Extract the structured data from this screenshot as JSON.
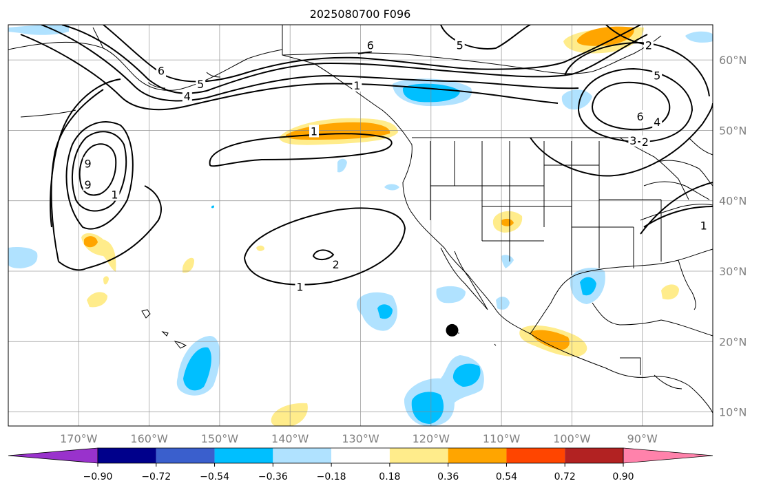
{
  "title": "2025080700 F096",
  "map": {
    "lon_range": [
      -180,
      -80
    ],
    "lat_range": [
      8,
      65
    ],
    "lon_ticks": [
      {
        "lon": -170,
        "label": "170°W"
      },
      {
        "lon": -160,
        "label": "160°W"
      },
      {
        "lon": -150,
        "label": "150°W"
      },
      {
        "lon": -140,
        "label": "140°W"
      },
      {
        "lon": -130,
        "label": "130°W"
      },
      {
        "lon": -120,
        "label": "120°W"
      },
      {
        "lon": -110,
        "label": "110°W"
      },
      {
        "lon": -100,
        "label": "100°W"
      },
      {
        "lon": -90,
        "label": "90°W"
      }
    ],
    "lat_ticks": [
      {
        "lat": 60,
        "label": "60°N"
      },
      {
        "lat": 50,
        "label": "50°N"
      },
      {
        "lat": 40,
        "label": "40°N"
      },
      {
        "lat": 30,
        "label": "30°N"
      },
      {
        "lat": 20,
        "label": "20°N"
      },
      {
        "lat": 10,
        "label": "10°N"
      }
    ],
    "marker": {
      "lon": -117,
      "lat": 21.6
    },
    "contour_labels": [
      {
        "text": "1",
        "lon": -136.6,
        "lat": 49.8
      },
      {
        "text": "1",
        "lon": -138.6,
        "lat": 27.7
      },
      {
        "text": "2",
        "lon": -133.5,
        "lat": 30.9
      },
      {
        "text": "1",
        "lon": -130.5,
        "lat": 56.3
      },
      {
        "text": "6",
        "lon": -128.6,
        "lat": 62.0
      },
      {
        "text": "5",
        "lon": -115.9,
        "lat": 62.0
      },
      {
        "text": "6",
        "lon": -158.3,
        "lat": 58.4
      },
      {
        "text": "5",
        "lon": -152.7,
        "lat": 56.5
      },
      {
        "text": "4",
        "lon": -154.6,
        "lat": 54.8
      },
      {
        "text": "2",
        "lon": -89.1,
        "lat": 62.0
      },
      {
        "text": "5",
        "lon": -87.9,
        "lat": 57.7
      },
      {
        "text": "6",
        "lon": -90.3,
        "lat": 51.9
      },
      {
        "text": "4",
        "lon": -87.9,
        "lat": 51.1
      },
      {
        "text": "3",
        "lon": -91.3,
        "lat": 48.5
      },
      {
        "text": "2",
        "lon": -89.6,
        "lat": 48.3
      },
      {
        "text": "9",
        "lon": -168.7,
        "lat": 45.2
      },
      {
        "text": "9",
        "lon": -168.7,
        "lat": 42.2
      },
      {
        "text": "1",
        "lon": -164.9,
        "lat": 40.8
      },
      {
        "text": "1",
        "lon": -81.3,
        "lat": 36.4
      }
    ]
  },
  "colorbar": {
    "ticks": [
      "−0.90",
      "−0.72",
      "−0.54",
      "−0.36",
      "−0.18",
      "0.18",
      "0.36",
      "0.54",
      "0.72",
      "0.90"
    ],
    "colors": [
      "#9932cc",
      "#00008b",
      "#3a5fcd",
      "#00bfff",
      "#b0e2ff",
      "#ffffff",
      "#ffec8b",
      "#ffa500",
      "#ff4500",
      "#b22222",
      "#ff82ab"
    ]
  }
}
